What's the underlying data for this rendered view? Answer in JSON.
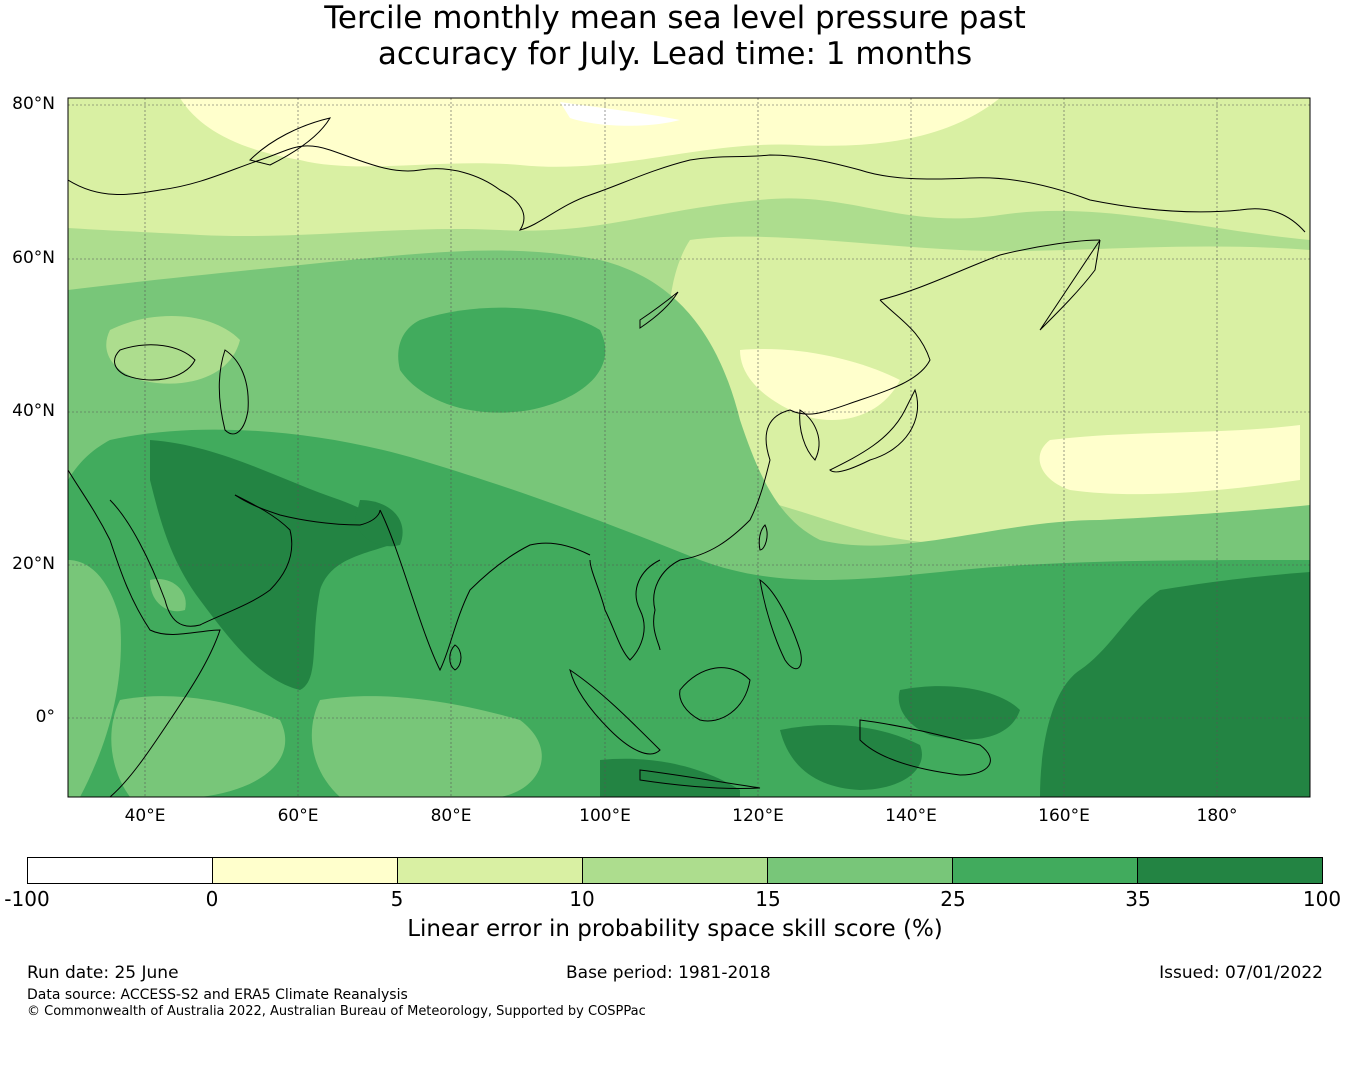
{
  "title": {
    "line1": "Tercile monthly mean sea level pressure past",
    "line2": "accuracy for July. Lead time: 1 months"
  },
  "map": {
    "lat_labels": [
      "80°N",
      "60°N",
      "40°N",
      "20°N",
      "0°"
    ],
    "lon_labels": [
      "40°E",
      "60°E",
      "80°E",
      "100°E",
      "120°E",
      "140°E",
      "160°E",
      "180°"
    ]
  },
  "colorbar": {
    "title": "Linear error in probability space skill score (%)",
    "ticks": [
      "-100",
      "0",
      "5",
      "10",
      "15",
      "25",
      "35",
      "100"
    ],
    "colors": [
      "#ffffff",
      "#ffffcc",
      "#d9f0a3",
      "#addd8e",
      "#78c679",
      "#41ab5d",
      "#238443"
    ]
  },
  "footer": {
    "run_date": "Run date: 25 June",
    "base_period": "Base period: 1981-2018",
    "issued": "Issued: 07/01/2022",
    "data_source": "Data source: ACCESS-S2 and ERA5 Climate Reanalysis",
    "copyright": "© Commonwealth of Australia 2022, Australian Bureau of Meteorology, Supported by COSPPac"
  },
  "colors": {
    "land_outline": "#000000",
    "gridline": "#555555"
  }
}
